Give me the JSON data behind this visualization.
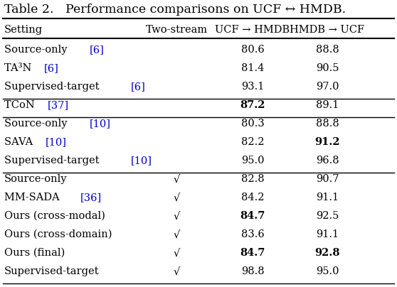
{
  "title": "Table 2.   Performance comparisons on UCF ↔ HMDB.",
  "col_headers": [
    "Setting",
    "Two-stream",
    "UCF → HMDB",
    "HMDB → UCF"
  ],
  "groups": [
    {
      "rows": [
        {
          "setting": "Source-only ",
          "ref": "[6]",
          "two_stream": "",
          "ucf_hmdb": "80.6",
          "hmdb_ucf": "88.8",
          "bold_ucf": false,
          "bold_hmdb": false
        },
        {
          "setting": "TA³N ",
          "ref": "[6]",
          "two_stream": "",
          "ucf_hmdb": "81.4",
          "hmdb_ucf": "90.5",
          "bold_ucf": false,
          "bold_hmdb": false
        },
        {
          "setting": "Supervised-target ",
          "ref": "[6]",
          "two_stream": "",
          "ucf_hmdb": "93.1",
          "hmdb_ucf": "97.0",
          "bold_ucf": false,
          "bold_hmdb": false
        }
      ],
      "sep_after": true
    },
    {
      "rows": [
        {
          "setting": "TCoN ",
          "ref": "[37]",
          "two_stream": "",
          "ucf_hmdb": "87.2",
          "hmdb_ucf": "89.1",
          "bold_ucf": true,
          "bold_hmdb": false
        }
      ],
      "sep_after": true
    },
    {
      "rows": [
        {
          "setting": "Source-only ",
          "ref": "[10]",
          "two_stream": "",
          "ucf_hmdb": "80.3",
          "hmdb_ucf": "88.8",
          "bold_ucf": false,
          "bold_hmdb": false
        },
        {
          "setting": "SAVA ",
          "ref": "[10]",
          "two_stream": "",
          "ucf_hmdb": "82.2",
          "hmdb_ucf": "91.2",
          "bold_ucf": false,
          "bold_hmdb": true
        },
        {
          "setting": "Supervised-target ",
          "ref": "[10]",
          "two_stream": "",
          "ucf_hmdb": "95.0",
          "hmdb_ucf": "96.8",
          "bold_ucf": false,
          "bold_hmdb": false
        }
      ],
      "sep_after": true
    },
    {
      "rows": [
        {
          "setting": "Source-only",
          "ref": "",
          "two_stream": "√",
          "ucf_hmdb": "82.8",
          "hmdb_ucf": "90.7",
          "bold_ucf": false,
          "bold_hmdb": false
        },
        {
          "setting": "MM-SADA ",
          "ref": "[36]",
          "two_stream": "√",
          "ucf_hmdb": "84.2",
          "hmdb_ucf": "91.1",
          "bold_ucf": false,
          "bold_hmdb": false
        },
        {
          "setting": "Ours (cross-modal)",
          "ref": "",
          "two_stream": "√",
          "ucf_hmdb": "84.7",
          "hmdb_ucf": "92.5",
          "bold_ucf": true,
          "bold_hmdb": false
        },
        {
          "setting": "Ours (cross-domain)",
          "ref": "",
          "two_stream": "√",
          "ucf_hmdb": "83.6",
          "hmdb_ucf": "91.1",
          "bold_ucf": false,
          "bold_hmdb": false
        },
        {
          "setting": "Ours (final)",
          "ref": "",
          "two_stream": "√",
          "ucf_hmdb": "84.7",
          "hmdb_ucf": "92.8",
          "bold_ucf": true,
          "bold_hmdb": true
        },
        {
          "setting": "Supervised-target",
          "ref": "",
          "two_stream": "√",
          "ucf_hmdb": "98.8",
          "hmdb_ucf": "95.0",
          "bold_ucf": false,
          "bold_hmdb": false
        }
      ],
      "sep_after": false
    }
  ],
  "background_color": "#ffffff",
  "text_color": "#000000",
  "ref_color": "#0000cc",
  "title_fontsize": 12.5,
  "header_fontsize": 10.5,
  "body_fontsize": 10.5
}
